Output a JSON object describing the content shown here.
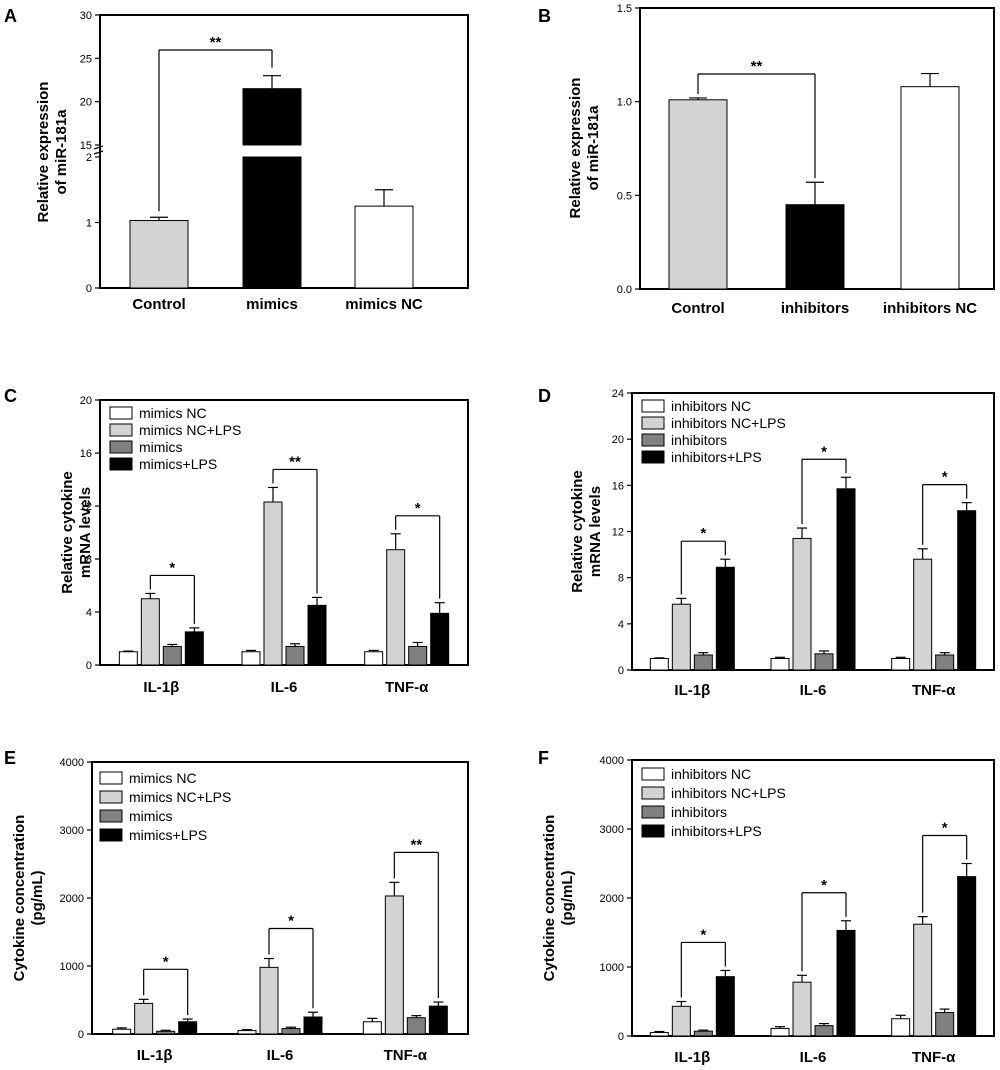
{
  "chart_data": [
    {
      "panel": "A",
      "type": "bar",
      "ylabel": [
        "Relative expression",
        "of miR-181a"
      ],
      "axis_break": true,
      "ylim_lower": [
        0,
        2
      ],
      "ylim_upper": [
        15,
        30
      ],
      "yticks_lower": [
        0,
        1,
        2
      ],
      "yticks_upper": [
        15,
        20,
        25,
        30
      ],
      "categories": [
        "Control",
        "mimics",
        "mimics NC"
      ],
      "values": [
        1.03,
        21.5,
        1.25
      ],
      "errors": [
        0.05,
        1.5,
        0.25
      ],
      "colors": [
        "#d3d3d3",
        "#000000",
        "#ffffff"
      ],
      "significance": [
        {
          "from": 0,
          "to": 1,
          "label": "**"
        }
      ]
    },
    {
      "panel": "B",
      "type": "bar",
      "ylabel": [
        "Relative expression",
        "of miR-181a"
      ],
      "ylim": [
        0,
        1.5
      ],
      "yticks": [
        "0.0",
        "0.5",
        "1.0",
        "1.5"
      ],
      "categories": [
        "Control",
        "inhibitors",
        "inhibitors NC"
      ],
      "values": [
        1.01,
        0.45,
        1.08
      ],
      "errors": [
        0.01,
        0.12,
        0.07
      ],
      "colors": [
        "#d3d3d3",
        "#000000",
        "#ffffff"
      ],
      "significance": [
        {
          "from": 0,
          "to": 1,
          "label": "**"
        }
      ]
    },
    {
      "panel": "C",
      "type": "bar",
      "ylabel": [
        "Relative cytokine",
        "mRNA levels"
      ],
      "ylim": [
        0,
        20
      ],
      "yticks": [
        0,
        4,
        8,
        12,
        16,
        20
      ],
      "categories": [
        "IL-1β",
        "IL-6",
        "TNF-α"
      ],
      "legend": [
        "mimics NC",
        "mimics NC+LPS",
        "mimics",
        "mimics+LPS"
      ],
      "series": [
        {
          "name": "mimics NC",
          "values": [
            1.0,
            1.0,
            1.0
          ],
          "errors": [
            0.05,
            0.1,
            0.1
          ]
        },
        {
          "name": "mimics NC+LPS",
          "values": [
            5.0,
            12.3,
            8.7
          ],
          "errors": [
            0.4,
            1.1,
            1.2
          ]
        },
        {
          "name": "mimics",
          "values": [
            1.4,
            1.4,
            1.4
          ],
          "errors": [
            0.15,
            0.2,
            0.3
          ]
        },
        {
          "name": "mimics+LPS",
          "values": [
            2.5,
            4.5,
            3.9
          ],
          "errors": [
            0.3,
            0.6,
            0.8
          ]
        }
      ],
      "significance": [
        {
          "category": 0,
          "label": "*"
        },
        {
          "category": 1,
          "label": "**"
        },
        {
          "category": 2,
          "label": "*"
        }
      ]
    },
    {
      "panel": "D",
      "type": "bar",
      "ylabel": [
        "Relative cytokine",
        "mRNA levels"
      ],
      "ylim": [
        0,
        24
      ],
      "yticks": [
        0,
        4,
        8,
        12,
        16,
        20,
        24
      ],
      "categories": [
        "IL-1β",
        "IL-6",
        "TNF-α"
      ],
      "legend": [
        "inhibitors NC",
        "inhibitors NC+LPS",
        "inhibitors",
        "inhibitors+LPS"
      ],
      "series": [
        {
          "name": "inhibitors NC",
          "values": [
            1.0,
            1.0,
            1.0
          ],
          "errors": [
            0.05,
            0.1,
            0.1
          ]
        },
        {
          "name": "inhibitors NC+LPS",
          "values": [
            5.7,
            11.4,
            9.6
          ],
          "errors": [
            0.5,
            0.9,
            0.9
          ]
        },
        {
          "name": "inhibitors",
          "values": [
            1.3,
            1.4,
            1.3
          ],
          "errors": [
            0.2,
            0.25,
            0.2
          ]
        },
        {
          "name": "inhibitors+LPS",
          "values": [
            8.9,
            15.7,
            13.8
          ],
          "errors": [
            0.7,
            1.0,
            0.7
          ]
        }
      ],
      "significance": [
        {
          "category": 0,
          "label": "*"
        },
        {
          "category": 1,
          "label": "*"
        },
        {
          "category": 2,
          "label": "*"
        }
      ]
    },
    {
      "panel": "E",
      "type": "bar",
      "ylabel": [
        "Cytokine concentration",
        "(pg/mL)"
      ],
      "ylim": [
        0,
        4000
      ],
      "yticks": [
        0,
        1000,
        2000,
        3000,
        4000
      ],
      "categories": [
        "IL-1β",
        "IL-6",
        "TNF-α"
      ],
      "legend": [
        "mimics NC",
        "mimics NC+LPS",
        "mimics",
        "mimics+LPS"
      ],
      "series": [
        {
          "name": "mimics NC",
          "values": [
            70,
            50,
            180
          ],
          "errors": [
            20,
            15,
            50
          ]
        },
        {
          "name": "mimics NC+LPS",
          "values": [
            450,
            980,
            2030
          ],
          "errors": [
            60,
            130,
            200
          ]
        },
        {
          "name": "mimics",
          "values": [
            40,
            80,
            240
          ],
          "errors": [
            15,
            20,
            30
          ]
        },
        {
          "name": "mimics+LPS",
          "values": [
            180,
            250,
            410
          ],
          "errors": [
            40,
            70,
            60
          ]
        }
      ],
      "significance": [
        {
          "category": 0,
          "label": "*"
        },
        {
          "category": 1,
          "label": "*"
        },
        {
          "category": 2,
          "label": "**"
        }
      ]
    },
    {
      "panel": "F",
      "type": "bar",
      "ylabel": [
        "Cytokine concentration",
        "(pg/mL)"
      ],
      "ylim": [
        0,
        4000
      ],
      "yticks": [
        0,
        1000,
        2000,
        3000,
        4000
      ],
      "categories": [
        "IL-1β",
        "IL-6",
        "TNF-α"
      ],
      "legend": [
        "inhibitors NC",
        "inhibitors NC+LPS",
        "inhibitors",
        "inhibitors+LPS"
      ],
      "series": [
        {
          "name": "inhibitors NC",
          "values": [
            50,
            110,
            250
          ],
          "errors": [
            15,
            25,
            50
          ]
        },
        {
          "name": "inhibitors NC+LPS",
          "values": [
            430,
            780,
            1620
          ],
          "errors": [
            70,
            100,
            110
          ]
        },
        {
          "name": "inhibitors",
          "values": [
            70,
            150,
            340
          ],
          "errors": [
            15,
            30,
            50
          ]
        },
        {
          "name": "inhibitors+LPS",
          "values": [
            860,
            1530,
            2310
          ],
          "errors": [
            90,
            140,
            190
          ]
        }
      ],
      "significance": [
        {
          "category": 0,
          "label": "*"
        },
        {
          "category": 1,
          "label": "*"
        },
        {
          "category": 2,
          "label": "*"
        }
      ]
    }
  ],
  "series_colors": [
    "#ffffff",
    "#d3d3d3",
    "#808080",
    "#000000"
  ]
}
